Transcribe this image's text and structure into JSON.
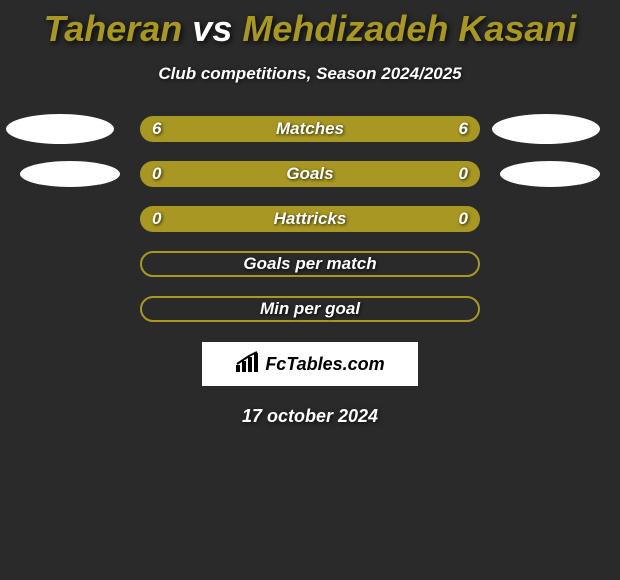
{
  "title": {
    "left": "Taheran",
    "vs": " vs ",
    "right": "Mehdizadeh Kasani",
    "left_color": "#a89823",
    "right_color": "#a89823"
  },
  "subtitle": "Club competitions, Season 2024/2025",
  "bar_fill": "#a89823",
  "bar_empty_border": "#a89823",
  "background": "#2a2a2a",
  "rows": [
    {
      "left": "6",
      "label": "Matches",
      "right": "6",
      "filled": true,
      "ellipse": "big"
    },
    {
      "left": "0",
      "label": "Goals",
      "right": "0",
      "filled": true,
      "ellipse": "small"
    },
    {
      "left": "0",
      "label": "Hattricks",
      "right": "0",
      "filled": true,
      "ellipse": "none"
    },
    {
      "left": "",
      "label": "Goals per match",
      "right": "",
      "filled": false,
      "ellipse": "none"
    },
    {
      "left": "",
      "label": "Min per goal",
      "right": "",
      "filled": false,
      "ellipse": "none"
    }
  ],
  "logo": "FcTables.com",
  "date": "17 october 2024"
}
